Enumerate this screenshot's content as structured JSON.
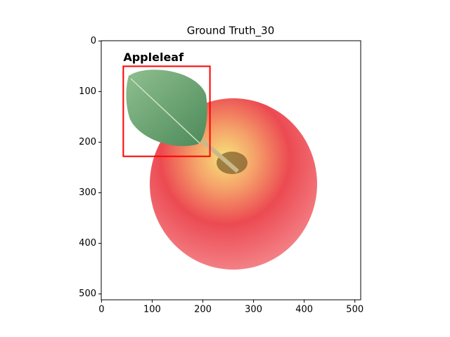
{
  "chart_data": {
    "type": "image",
    "title": "Ground Truth_30",
    "xlim": [
      -0.5,
      511.5
    ],
    "ylim": [
      511.5,
      -0.5
    ],
    "xticks": [
      0,
      100,
      200,
      300,
      400,
      500
    ],
    "yticks": [
      0,
      100,
      200,
      300,
      400,
      500
    ],
    "boxes": [
      {
        "label": "Appleleaf",
        "color": "#ff0000",
        "xmin": 43,
        "ymin": 50,
        "xmax": 214,
        "ymax": 228
      }
    ]
  }
}
